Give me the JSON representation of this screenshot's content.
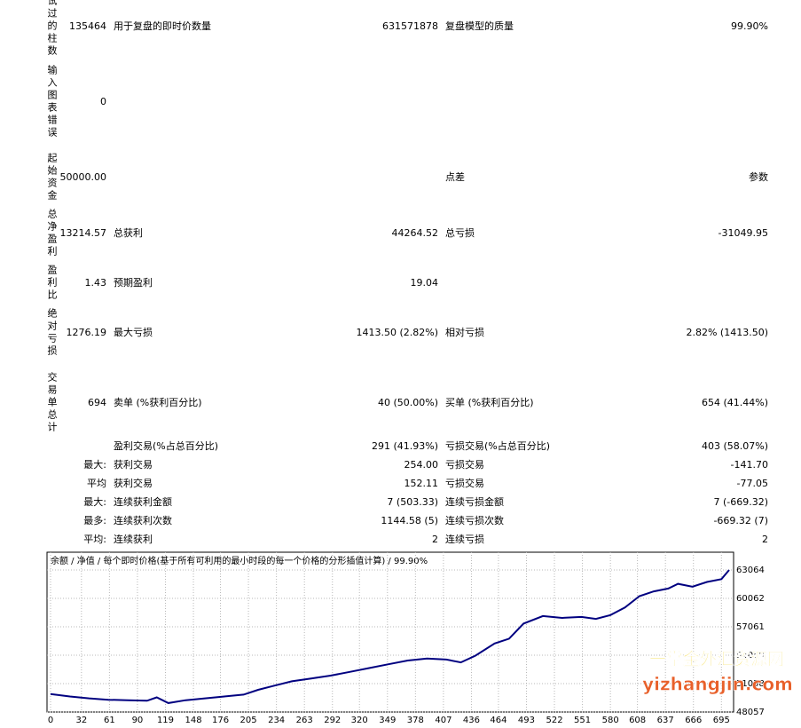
{
  "summary": [
    {
      "label": "试过的柱数",
      "value": "135464",
      "cells": [
        "用于复盘的即时价数量",
        "631571878",
        "复盘模型的质量",
        "99.90%"
      ]
    },
    {
      "label": "输入图表错误",
      "value": "0",
      "cells": [
        null,
        null,
        null,
        null
      ]
    },
    {
      "label": "起始资金",
      "value": "50000.00",
      "cells": [
        null,
        null,
        "点差",
        "参数"
      ]
    },
    {
      "label": "总净盈利",
      "value": "13214.57",
      "cells": [
        "总获利",
        "44264.52",
        "总亏损",
        "-31049.95"
      ]
    },
    {
      "label": "盈利比",
      "value": "1.43",
      "cells": [
        "预期盈利",
        "19.04",
        null,
        null
      ]
    },
    {
      "label": "绝对亏损",
      "value": "1276.19",
      "cells": [
        "最大亏损",
        "1413.50 (2.82%)",
        "相对亏损",
        "2.82% (1413.50)"
      ]
    },
    {
      "label": "交易单总计",
      "value": "694",
      "cells": [
        "卖单 (%获利百分比)",
        "40 (50.00%)",
        "买单 (%获利百分比)",
        "654 (41.44%)"
      ]
    }
  ],
  "details": [
    {
      "prefix": null,
      "cells": [
        "盈利交易(%占总百分比)",
        "291 (41.93%)",
        "亏损交易(%占总百分比)",
        "403 (58.07%)"
      ]
    },
    {
      "prefix": "最大:",
      "cells": [
        "获利交易",
        "254.00",
        "亏损交易",
        "-141.70"
      ]
    },
    {
      "prefix": "平均",
      "cells": [
        "获利交易",
        "152.11",
        "亏损交易",
        "-77.05"
      ]
    },
    {
      "prefix": "最大:",
      "cells": [
        "连续获利金额",
        "7 (503.33)",
        "连续亏损金额",
        "7 (-669.32)"
      ]
    },
    {
      "prefix": "最多:",
      "cells": [
        "连续获利次数",
        "1144.58 (5)",
        "连续亏损次数",
        "-669.32 (7)"
      ]
    },
    {
      "prefix": "平均:",
      "cells": [
        "连续获利",
        "2",
        "连续亏损",
        "2"
      ]
    }
  ],
  "chart_data": {
    "type": "line",
    "subtitle": "余额 / 净值 / 每个即时价格(基于所有可利用的最小时段的每一个价格的分形插值计算) / 99.90%",
    "x": [
      0,
      20,
      40,
      60,
      80,
      100,
      110,
      122,
      140,
      160,
      180,
      200,
      215,
      230,
      250,
      270,
      290,
      310,
      330,
      350,
      370,
      390,
      410,
      425,
      440,
      460,
      475,
      490,
      510,
      530,
      550,
      565,
      580,
      595,
      610,
      625,
      640,
      650,
      665,
      680,
      695,
      703
    ],
    "values": [
      49950,
      49700,
      49500,
      49350,
      49300,
      49250,
      49600,
      49000,
      49300,
      49500,
      49700,
      49900,
      50400,
      50800,
      51300,
      51600,
      51900,
      52300,
      52700,
      53100,
      53500,
      53700,
      53600,
      53300,
      54000,
      55300,
      55800,
      57400,
      58200,
      58000,
      58100,
      57900,
      58300,
      59100,
      60300,
      60800,
      61100,
      61600,
      61300,
      61800,
      62100,
      63064
    ],
    "color": "#000080",
    "xlim": [
      0,
      703
    ],
    "ylim": [
      48057,
      64940
    ],
    "xticks": [
      0,
      32,
      61,
      90,
      119,
      148,
      176,
      205,
      234,
      263,
      292,
      320,
      349,
      378,
      407,
      436,
      464,
      493,
      522,
      551,
      580,
      608,
      637,
      666,
      695
    ],
    "yticks": [
      48057,
      51058,
      54059,
      57061,
      60062,
      63064
    ],
    "grid": true
  },
  "watermark": {
    "line1": "一掌金外汇资源网",
    "line2": "yizhangjin.com"
  }
}
